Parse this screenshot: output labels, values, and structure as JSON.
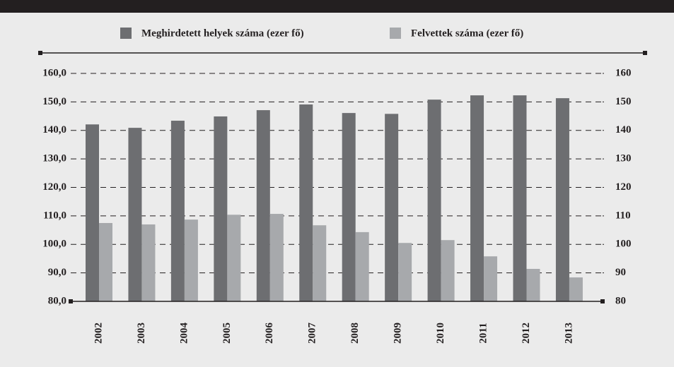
{
  "chart_data": {
    "type": "bar",
    "categories": [
      "2002",
      "2003",
      "2004",
      "2005",
      "2006",
      "2007",
      "2008",
      "2009",
      "2010",
      "2011",
      "2012",
      "2013"
    ],
    "series": [
      {
        "name": "Meghirdetett helyek száma (ezer fő)",
        "color": "#6d6e71",
        "values": [
          142.1,
          140.9,
          143.4,
          144.9,
          147.1,
          149.1,
          146.1,
          145.8,
          150.8,
          152.3,
          152.3,
          151.3
        ]
      },
      {
        "name": "Felvettek száma (ezer fő)",
        "color": "#a7a9ac",
        "values": [
          107.5,
          107,
          108.7,
          110.4,
          110.7,
          106.7,
          104.3,
          100.5,
          101.5,
          95.8,
          91.4,
          88.4
        ]
      }
    ],
    "ylim": [
      80,
      160
    ],
    "yticks": [
      {
        "value": 80,
        "label": "80,0"
      },
      {
        "value": 90,
        "label": "90,0"
      },
      {
        "value": 100,
        "label": "100,0"
      },
      {
        "value": 110,
        "label": "110,0"
      },
      {
        "value": 120,
        "label": "120,0"
      },
      {
        "value": 130,
        "label": "130,0"
      },
      {
        "value": 140,
        "label": "140,0"
      },
      {
        "value": 150,
        "label": "150,0"
      },
      {
        "value": 160,
        "label": "160,0"
      }
    ],
    "y2lim": [
      80,
      160
    ],
    "y2ticks": [
      80,
      90,
      100,
      110,
      120,
      130,
      140,
      150,
      160
    ],
    "grid": true
  }
}
